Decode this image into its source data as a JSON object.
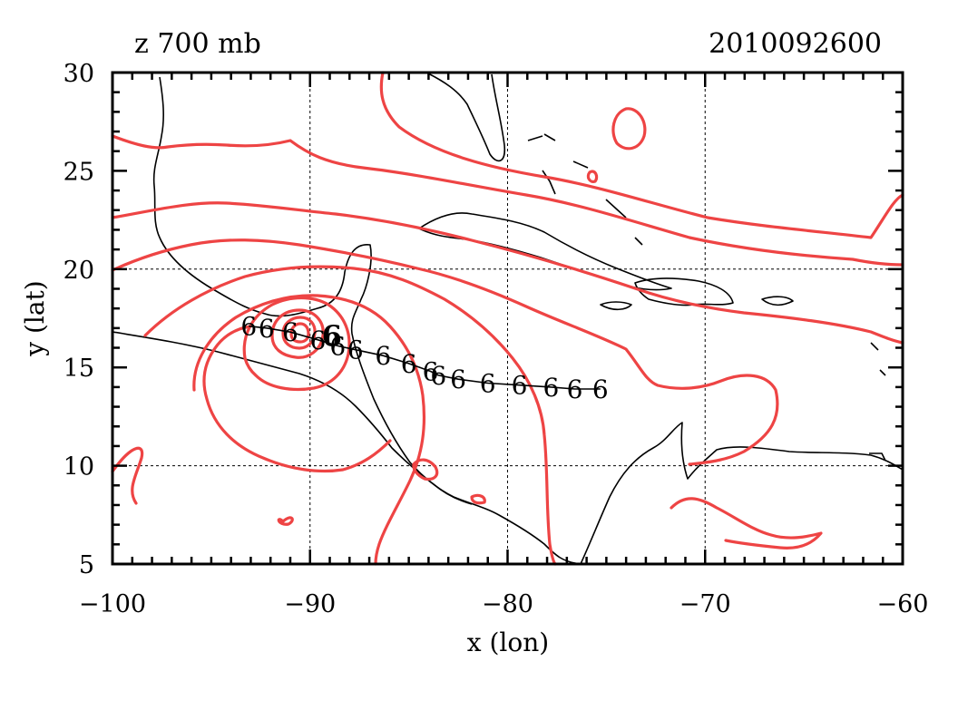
{
  "title_left": "z 700 mb",
  "title_right": "2010092600",
  "chart_data": {
    "type": "map",
    "xlabel": "x (lon)",
    "ylabel": "y (lat)",
    "xlim": [
      -100,
      -60
    ],
    "ylim": [
      5,
      30
    ],
    "x_ticks": [
      -100,
      -90,
      -80,
      -70,
      -60
    ],
    "y_ticks": [
      5,
      10,
      15,
      20,
      25,
      30
    ],
    "x_tick_labels": [
      "−100",
      "−90",
      "−80",
      "−70",
      "−60"
    ],
    "y_tick_labels": [
      "5",
      "10",
      "15",
      "20",
      "25",
      "30"
    ],
    "grid_lines_x": [
      -90,
      -80,
      -70
    ],
    "grid_lines_y": [
      10,
      20
    ],
    "contour_color": "#ee4444",
    "track_color": "#000000",
    "current_position_color": "#0000cc",
    "track_symbol": "6",
    "track_points": [
      [
        -75.3,
        13.9
      ],
      [
        -76.6,
        13.9
      ],
      [
        -77.8,
        14.0
      ],
      [
        -79.4,
        14.1
      ],
      [
        -81.0,
        14.2
      ],
      [
        -82.5,
        14.4
      ],
      [
        -83.5,
        14.6
      ],
      [
        -83.9,
        14.8
      ],
      [
        -85.0,
        15.2
      ],
      [
        -86.3,
        15.6
      ],
      [
        -87.7,
        15.9
      ],
      [
        -88.6,
        16.1
      ],
      [
        -89.6,
        16.4
      ],
      [
        -91.0,
        16.8
      ],
      [
        -92.2,
        17.0
      ],
      [
        -93.1,
        17.1
      ]
    ],
    "current_position": [
      -88.9,
      16.6
    ]
  }
}
